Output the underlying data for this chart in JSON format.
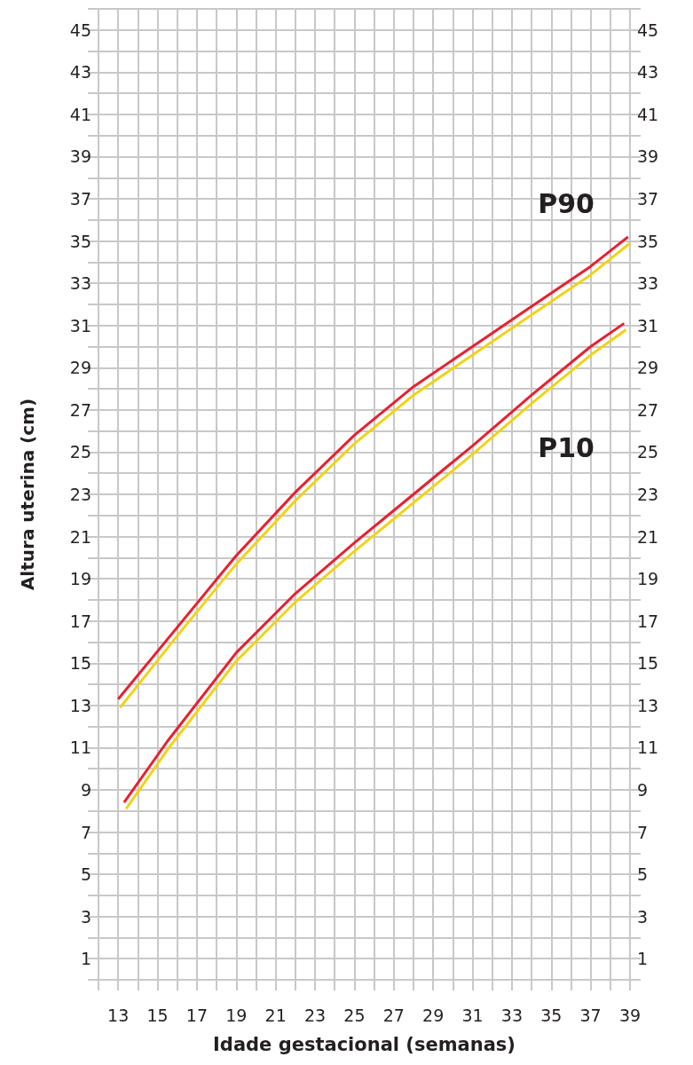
{
  "chart_data": {
    "type": "line",
    "xlabel": "Idade gestacional (semanas)",
    "ylabel": "Altura uterina (cm)",
    "xlim": [
      12,
      39
    ],
    "ylim": [
      0,
      46
    ],
    "y2lim": [
      0,
      46
    ],
    "xticks": [
      {
        "value": 12,
        "label": null
      },
      13,
      {
        "value": 14,
        "label": null
      },
      15,
      {
        "value": 16,
        "label": null
      },
      17,
      {
        "value": 18,
        "label": null
      },
      19,
      {
        "value": 20,
        "label": null
      },
      21,
      {
        "value": 22,
        "label": null
      },
      23,
      {
        "value": 24,
        "label": null
      },
      25,
      {
        "value": 26,
        "label": null
      },
      27,
      {
        "value": 28,
        "label": null
      },
      29,
      {
        "value": 30,
        "label": null
      },
      31,
      {
        "value": 32,
        "label": null
      },
      33,
      {
        "value": 34,
        "label": null
      },
      35,
      {
        "value": 36,
        "label": null
      },
      37,
      {
        "value": 38,
        "label": null
      },
      39
    ],
    "yticks": [
      {
        "value": 0,
        "label": null
      },
      1,
      {
        "value": 2,
        "label": null
      },
      3,
      {
        "value": 4,
        "label": null
      },
      5,
      {
        "value": 6,
        "label": null
      },
      7,
      {
        "value": 8,
        "label": null
      },
      9,
      {
        "value": 10,
        "label": null
      },
      11,
      {
        "value": 12,
        "label": null
      },
      13,
      {
        "value": 14,
        "label": null
      },
      15,
      {
        "value": 16,
        "label": null
      },
      17,
      {
        "value": 18,
        "label": null
      },
      19,
      {
        "value": 20,
        "label": null
      },
      21,
      {
        "value": 22,
        "label": null
      },
      23,
      {
        "value": 24,
        "label": null
      },
      25,
      {
        "value": 26,
        "label": null
      },
      27,
      {
        "value": 28,
        "label": null
      },
      29,
      {
        "value": 30,
        "label": null
      },
      31,
      {
        "value": 32,
        "label": null
      },
      33,
      {
        "value": 34,
        "label": null
      },
      35,
      {
        "value": 36,
        "label": null
      },
      37,
      {
        "value": 38,
        "label": null
      },
      39,
      {
        "value": 40,
        "label": null
      },
      41,
      {
        "value": 42,
        "label": null
      },
      43,
      {
        "value": 44,
        "label": null
      },
      45,
      {
        "value": 46,
        "label": null
      }
    ],
    "y2ticks": [
      {
        "value": 0,
        "label": null
      },
      1,
      {
        "value": 2,
        "label": null
      },
      3,
      {
        "value": 4,
        "label": null
      },
      5,
      {
        "value": 6,
        "label": null
      },
      7,
      {
        "value": 8,
        "label": null
      },
      9,
      {
        "value": 10,
        "label": null
      },
      11,
      {
        "value": 12,
        "label": null
      },
      13,
      {
        "value": 14,
        "label": null
      },
      15,
      {
        "value": 16,
        "label": null
      },
      17,
      {
        "value": 18,
        "label": null
      },
      19,
      {
        "value": 20,
        "label": null
      },
      21,
      {
        "value": 22,
        "label": null
      },
      23,
      {
        "value": 24,
        "label": null
      },
      25,
      {
        "value": 26,
        "label": null
      },
      27,
      {
        "value": 28,
        "label": null
      },
      29,
      {
        "value": 30,
        "label": null
      },
      31,
      {
        "value": 32,
        "label": null
      },
      33,
      {
        "value": 34,
        "label": null
      },
      35,
      {
        "value": 36,
        "label": null
      },
      37,
      {
        "value": 38,
        "label": null
      },
      39,
      {
        "value": 40,
        "label": null
      },
      41,
      {
        "value": 42,
        "label": null
      },
      43,
      {
        "value": 44,
        "label": null
      },
      45,
      {
        "value": 46,
        "label": null
      }
    ],
    "grid": true,
    "series": [
      {
        "color": "#e8202f",
        "x": [
          13.0,
          16,
          19,
          22,
          25,
          28,
          31,
          34,
          37,
          38.9
        ],
        "values": [
          13.3,
          16.7,
          20.1,
          23.1,
          25.8,
          28.1,
          30.0,
          31.9,
          33.8,
          35.2
        ]
      },
      {
        "color": "#f0d31a",
        "x": [
          13.1,
          16,
          19,
          22,
          25,
          28,
          31,
          34,
          37,
          39
        ],
        "values": [
          12.9,
          16.3,
          19.7,
          22.7,
          25.4,
          27.7,
          29.6,
          31.5,
          33.4,
          34.9
        ]
      },
      {
        "color": "#e8202f",
        "x": [
          13.3,
          15.5,
          19,
          22,
          25,
          28,
          31,
          34,
          37,
          38.7
        ],
        "values": [
          8.4,
          11.3,
          15.5,
          18.3,
          20.7,
          23.0,
          25.3,
          27.7,
          30.0,
          31.1
        ]
      },
      {
        "color": "#f0d31a",
        "x": [
          13.4,
          15.5,
          19,
          22,
          25,
          28,
          31,
          34,
          37,
          38.8
        ],
        "values": [
          8.1,
          10.9,
          15.1,
          17.9,
          20.3,
          22.6,
          24.9,
          27.3,
          29.6,
          30.8
        ]
      }
    ],
    "annotations": [
      "P90",
      "P10"
    ]
  }
}
